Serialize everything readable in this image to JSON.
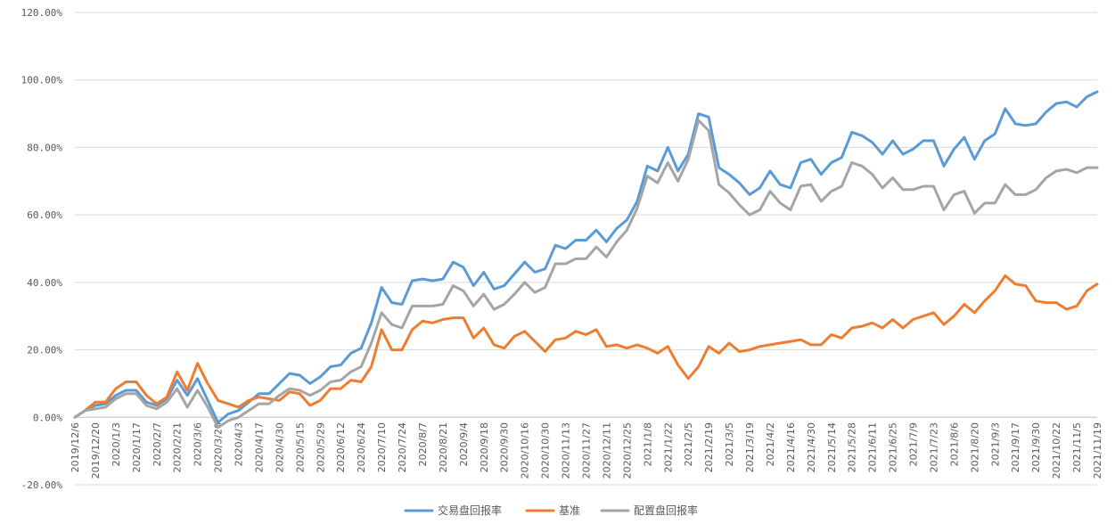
{
  "chart_data": {
    "type": "line",
    "ylim": [
      -0.2,
      1.2
    ],
    "ytick_values": [
      -0.2,
      0,
      0.2,
      0.4,
      0.6,
      0.8,
      1.0,
      1.2
    ],
    "ytick_labels": [
      "-20.00%",
      "0.00%",
      "20.00%",
      "40.00%",
      "60.00%",
      "80.00%",
      "100.00%",
      "120.00%"
    ],
    "grid": true,
    "legend_position": "bottom",
    "x_tick_labels": [
      "2019/12/6",
      "2019/12/20",
      "2020/1/3",
      "2020/1/17",
      "2020/2/7",
      "2020/2/21",
      "2020/3/6",
      "2020/3/20",
      "2020/4/3",
      "2020/4/17",
      "2020/4/30",
      "2020/5/15",
      "2020/5/29",
      "2020/6/12",
      "2020/6/24",
      "2020/7/10",
      "2020/7/24",
      "2020/8/7",
      "2020/8/21",
      "2020/9/4",
      "2020/9/18",
      "2020/9/30",
      "2020/10/16",
      "2020/10/30",
      "2020/11/13",
      "2020/11/27",
      "2020/12/11",
      "2020/12/25",
      "2021/1/8",
      "2021/1/22",
      "2021/2/5",
      "2021/2/19",
      "2021/3/5",
      "2021/3/19",
      "2021/4/2",
      "2021/4/16",
      "2021/4/30",
      "2021/5/14",
      "2021/5/28",
      "2021/6/11",
      "2021/6/25",
      "2021/7/9",
      "2021/7/23",
      "2021/8/6",
      "2021/8/20",
      "2021/9/3",
      "2021/9/17",
      "2021/9/30",
      "2021/10/22",
      "2021/11/5",
      "2021/11/19"
    ],
    "series": [
      {
        "name": "交易盘回报率",
        "color": "#5b9bd5",
        "values": [
          0,
          0.02,
          0.035,
          0.04,
          0.065,
          0.08,
          0.08,
          0.045,
          0.035,
          0.055,
          0.11,
          0.065,
          0.115,
          0.05,
          -0.015,
          0.01,
          0.02,
          0.045,
          0.07,
          0.07,
          0.1,
          0.13,
          0.125,
          0.1,
          0.12,
          0.15,
          0.155,
          0.19,
          0.205,
          0.28,
          0.385,
          0.34,
          0.335,
          0.405,
          0.41,
          0.405,
          0.41,
          0.46,
          0.445,
          0.39,
          0.43,
          0.38,
          0.39,
          0.425,
          0.46,
          0.43,
          0.44,
          0.51,
          0.5,
          0.525,
          0.525,
          0.555,
          0.52,
          0.56,
          0.585,
          0.64,
          0.745,
          0.73,
          0.8,
          0.73,
          0.78,
          0.9,
          0.89,
          0.74,
          0.72,
          0.695,
          0.66,
          0.68,
          0.73,
          0.69,
          0.68,
          0.755,
          0.765,
          0.72,
          0.755,
          0.77,
          0.845,
          0.835,
          0.815,
          0.78,
          0.82,
          0.78,
          0.795,
          0.82,
          0.82,
          0.745,
          0.795,
          0.83,
          0.765,
          0.82,
          0.84,
          0.915,
          0.87,
          0.865,
          0.87,
          0.905,
          0.93,
          0.935,
          0.92,
          0.95,
          0.965
        ]
      },
      {
        "name": "基准",
        "color": "#ed7d31",
        "values": [
          0,
          0.02,
          0.045,
          0.045,
          0.085,
          0.105,
          0.105,
          0.065,
          0.04,
          0.06,
          0.135,
          0.08,
          0.16,
          0.1,
          0.05,
          0.04,
          0.03,
          0.05,
          0.06,
          0.055,
          0.05,
          0.075,
          0.07,
          0.035,
          0.05,
          0.085,
          0.085,
          0.11,
          0.105,
          0.15,
          0.26,
          0.2,
          0.2,
          0.26,
          0.285,
          0.28,
          0.29,
          0.295,
          0.295,
          0.235,
          0.265,
          0.215,
          0.205,
          0.24,
          0.255,
          0.225,
          0.195,
          0.23,
          0.235,
          0.255,
          0.245,
          0.26,
          0.21,
          0.215,
          0.205,
          0.215,
          0.205,
          0.19,
          0.21,
          0.155,
          0.115,
          0.15,
          0.21,
          0.19,
          0.22,
          0.195,
          0.2,
          0.21,
          0.215,
          0.22,
          0.225,
          0.23,
          0.215,
          0.215,
          0.245,
          0.235,
          0.265,
          0.27,
          0.28,
          0.265,
          0.29,
          0.265,
          0.29,
          0.3,
          0.31,
          0.275,
          0.3,
          0.335,
          0.31,
          0.345,
          0.375,
          0.42,
          0.395,
          0.39,
          0.345,
          0.34,
          0.34,
          0.32,
          0.33,
          0.375,
          0.395
        ]
      },
      {
        "name": "配置盘回报率",
        "color": "#a5a5a5",
        "values": [
          0,
          0.02,
          0.025,
          0.03,
          0.055,
          0.07,
          0.07,
          0.035,
          0.025,
          0.045,
          0.085,
          0.03,
          0.08,
          0.03,
          -0.03,
          -0.01,
          0,
          0.02,
          0.04,
          0.04,
          0.065,
          0.085,
          0.08,
          0.065,
          0.08,
          0.105,
          0.11,
          0.135,
          0.15,
          0.22,
          0.31,
          0.275,
          0.265,
          0.33,
          0.33,
          0.33,
          0.335,
          0.39,
          0.375,
          0.33,
          0.365,
          0.32,
          0.335,
          0.365,
          0.4,
          0.37,
          0.385,
          0.455,
          0.455,
          0.47,
          0.47,
          0.505,
          0.475,
          0.52,
          0.555,
          0.62,
          0.715,
          0.695,
          0.755,
          0.7,
          0.765,
          0.88,
          0.85,
          0.69,
          0.665,
          0.63,
          0.6,
          0.615,
          0.67,
          0.635,
          0.615,
          0.685,
          0.69,
          0.64,
          0.67,
          0.685,
          0.755,
          0.745,
          0.72,
          0.68,
          0.71,
          0.675,
          0.675,
          0.685,
          0.685,
          0.615,
          0.66,
          0.67,
          0.605,
          0.635,
          0.635,
          0.69,
          0.66,
          0.66,
          0.675,
          0.71,
          0.73,
          0.735,
          0.725,
          0.74,
          0.74
        ]
      }
    ]
  }
}
